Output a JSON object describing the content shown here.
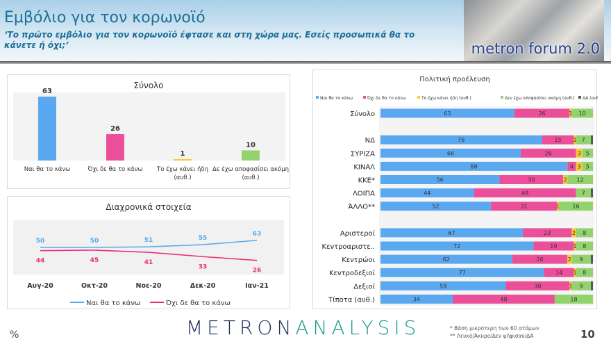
{
  "header": {
    "title": "Εμβόλιο για τον κορωνοϊό",
    "subtitle": "‘Το πρώτο εμβόλιο για τον κορωνοϊό έφτασε και στη χώρα μας. Εσείς προσωπικά θα το κάνετε ή όχι;’",
    "logo_text": "metron forum 2.0"
  },
  "footer": {
    "unit": "%",
    "logo_part1": "METRON",
    "logo_part2": "ANALYSIS",
    "note1": "* Βάση μικρότερη των 60 ατόμων",
    "note2": "** Λευκό/Άκυρο/Δεν ψήφισαν/ΔΑ",
    "page": "10"
  },
  "colors": {
    "yes": "#5aa9f0",
    "no": "#ec4f9a",
    "already": "#f9c93a",
    "undecided": "#92d36e",
    "na": "#595959"
  },
  "chart_data": [
    {
      "type": "bar",
      "title": "Σύνολο",
      "categories": [
        "Ναι θα το κάνω",
        "Όχι δε θα το κάνω",
        "Το έχω κάνει ήδη (αυθ.)",
        "Δε έχω αποφασίσει ακόμη (αυθ.)"
      ],
      "values": [
        63,
        26,
        1,
        10
      ],
      "ylim": [
        0,
        70
      ]
    },
    {
      "type": "line",
      "title": "Διαχρονικά στοιχεία",
      "categories": [
        "Αυγ-20",
        "Οκτ-20",
        "Νοε-20",
        "Δεκ-20",
        "Ιαν-21"
      ],
      "ylim": [
        0,
        100
      ],
      "legend": "bottom",
      "series": [
        {
          "name": "Ναι θα το κάνω",
          "values": [
            50,
            50,
            51,
            55,
            63
          ]
        },
        {
          "name": "Όχι δε θα το κάνω",
          "values": [
            44,
            45,
            41,
            33,
            26
          ]
        }
      ]
    },
    {
      "type": "bar",
      "orientation": "horizontal",
      "stacked": true,
      "title": "Πολιτική προέλευση",
      "legend": "top",
      "xlim": [
        0,
        100
      ],
      "categories": [
        "Σύνολο",
        "",
        "ΝΔ",
        "ΣΥΡΙΖΑ",
        "ΚΙΝΑΛ",
        "ΚΚΕ*",
        "ΛΟΙΠΑ",
        "ΆΛΛΟ**",
        "",
        "Αριστεροί",
        "Κεντροαριστε..",
        "Κεντρώοι",
        "Κεντροδεξιοί",
        "Δεξιοί",
        "Τίποτα (αυθ.)"
      ],
      "series": [
        {
          "name": "Ναι θα το κάνω",
          "values": [
            63,
            null,
            76,
            66,
            88,
            56,
            44,
            52,
            null,
            67,
            72,
            62,
            77,
            59,
            34
          ]
        },
        {
          "name": "Όχι δε θα το κάνω",
          "values": [
            26,
            null,
            15,
            26,
            4,
            30,
            48,
            31,
            null,
            23,
            19,
            26,
            14,
            30,
            48
          ]
        },
        {
          "name": "Το έχω κάνει ήδη (αυθ.)",
          "values": [
            1,
            null,
            1,
            3,
            3,
            2,
            0,
            1,
            null,
            2,
            1,
            2,
            1,
            1,
            0
          ]
        },
        {
          "name": "Δεν έχω αποφασίσει ακόμη (αυθ.)",
          "values": [
            10,
            null,
            7,
            5,
            5,
            12,
            7,
            16,
            null,
            8,
            8,
            9,
            8,
            9,
            18
          ]
        },
        {
          "name": "ΔΑ (αυθ.)",
          "values": [
            0,
            null,
            1,
            0,
            0,
            0,
            1,
            0,
            null,
            0,
            0,
            1,
            0,
            1,
            0
          ]
        }
      ]
    }
  ]
}
